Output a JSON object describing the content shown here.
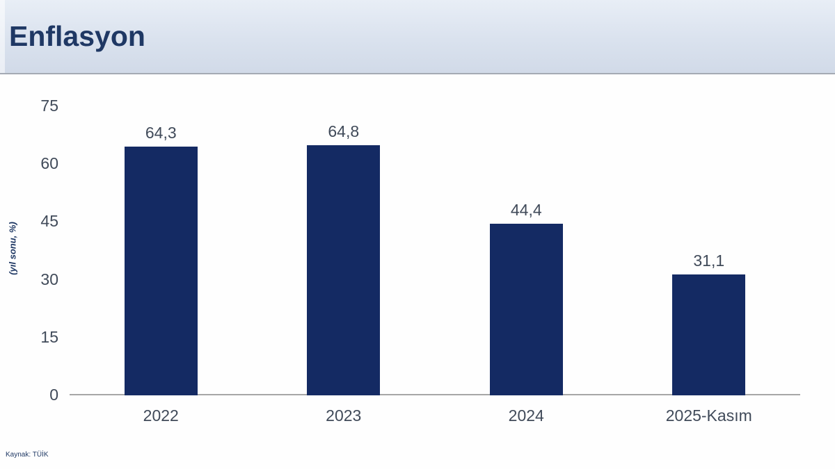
{
  "header": {
    "title": "Enflasyon"
  },
  "footer": {
    "source": "Kaynak: TÜİK"
  },
  "chart_data": {
    "type": "bar",
    "title": "Enflasyon",
    "categories": [
      "2022",
      "2023",
      "2024",
      "2025-Kasım"
    ],
    "values": [
      64.3,
      64.8,
      44.4,
      31.1
    ],
    "value_labels": [
      "64,3",
      "64,8",
      "44,4",
      "31,1"
    ],
    "xlabel": "",
    "ylabel": "(yıl sonu, %)",
    "ylim": [
      0,
      75
    ],
    "yticks": [
      0,
      15,
      30,
      45,
      60,
      75
    ],
    "grid": false,
    "legend": false,
    "bar_color": "#142a63",
    "axis_line_color": "#a6a6a6",
    "label_color": "#404a59"
  },
  "colors": {
    "header_bg": "#dae2ee",
    "header_border": "#a4aab4",
    "title_color": "#1f3864",
    "bar": "#142a63",
    "axis_line": "#a6a6a6",
    "label": "#404a59",
    "background": "#ffffff"
  }
}
